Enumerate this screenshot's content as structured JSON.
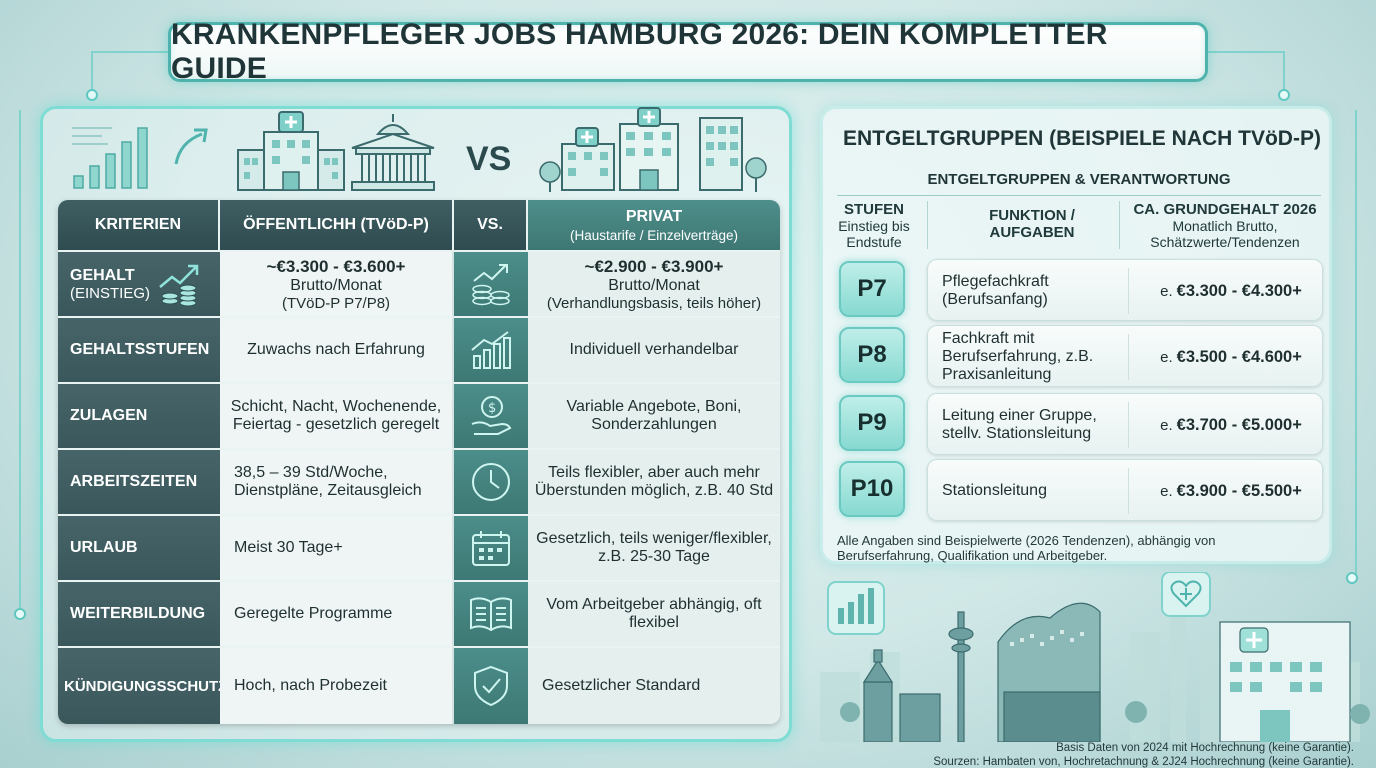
{
  "title": "KRANKENPFLEGER JOBS HAMBURG 2026: DEIN KOMPLETTER GUIDE",
  "vs_big": "VS",
  "comparison": {
    "headers": {
      "criteria": "KRITERIEN",
      "public": "ÖFFENTLICHH (TVöD-P)",
      "vs": "VS.",
      "private": "PRIVAT",
      "private_sub": "(Haustarife / Einzelverträge)"
    },
    "rows": [
      {
        "criterion": "GEHALT",
        "criterion_sub": "(EINSTIEG)",
        "public_lines": [
          "~€3.300 - €3.600+",
          "Brutto/Monat",
          "(TVöD-P P7/P8)"
        ],
        "icon": "coins-chart-icon",
        "private_lines": [
          "~€2.900 - €3.900+",
          "Brutto/Monat",
          "(Verhandlungsbasis, teils höher)"
        ]
      },
      {
        "criterion": "GEHALTSSTUFEN",
        "public": "Zuwachs nach Erfahrung",
        "icon": "growth-chart-icon",
        "private": "Individuell verhandelbar"
      },
      {
        "criterion": "ZULAGEN",
        "public": "Schicht, Nacht, Wochenende, Feiertag - gesetzlich geregelt",
        "icon": "money-hand-icon",
        "private": "Variable Angebote, Boni, Sonderzahlungen"
      },
      {
        "criterion": "ARBEITSZEITEN",
        "public": "38,5 – 39 Std/Woche, Dienstpläne, Zeitausgleich",
        "icon": "clock-icon",
        "private": "Teils flexibler, aber auch mehr Überstunden möglich, z.B. 40 Std"
      },
      {
        "criterion": "URLAUB",
        "public": "Meist 30 Tage+",
        "icon": "calendar-icon",
        "private": "Gesetzlich, teils weniger/flexibler, z.B. 25-30 Tage"
      },
      {
        "criterion": "WEITERBILDUNG",
        "public": "Geregelte Programme",
        "icon": "book-icon",
        "private": "Vom Arbeitgeber abhängig, oft flexibel"
      },
      {
        "criterion": "KÜNDIGUNGSSCHUTZ",
        "public": "Hoch, nach Probezeit",
        "icon": "shield-check-icon",
        "private": "Gesetzlicher Standard"
      }
    ]
  },
  "grades": {
    "title": "ENTGELTGRUPPEN (BEISPIELE NACH TVöD-P)",
    "subtitle": "ENTGELTGRUPPEN & VERANTWORTUNG",
    "col1_title": "STUFEN",
    "col1_sub": "Einstieg bis Endstufe",
    "col2_title": "FUNKTION / AUFGABEN",
    "col3_title": "CA. GRUNDGEHALT 2026",
    "col3_sub": "Monatlich Brutto, Schätzwerte/Tendenzen",
    "items": [
      {
        "grade": "P7",
        "function": "Pflegefachkraft (Berufsanfang)",
        "prefix": "e.",
        "salary": "€3.300 - €4.300+"
      },
      {
        "grade": "P8",
        "function": "Fachkraft mit Berufserfahrung, z.B. Praxisanleitung",
        "prefix": "e.",
        "salary": "€3.500 - €4.600+"
      },
      {
        "grade": "P9",
        "function": "Leitung einer Gruppe, stellv. Stationsleitung",
        "prefix": "e.",
        "salary": "€3.700 - €5.000+"
      },
      {
        "grade": "P10",
        "function": "Stationsleitung",
        "prefix": "e.",
        "salary": "€3.900 - €5.500+"
      }
    ],
    "note": "Alle Angaben sind Beispielwerte (2026 Tendenzen), abhängig von Berufserfahrung, Qualifikation und Arbeitgeber."
  },
  "footer": {
    "line1": "Basis Daten von 2024 mit Hochrechnung (keine Garantie).",
    "line2": "Sourzen: Hambaten von, Hochretachnung & 2J24 Hochrechnung (keine Garantie)."
  },
  "colors": {
    "accent": "#4fb3ad",
    "header_dark": "#3a585c",
    "private_teal": "#3e7773",
    "badge": "#86d9d1"
  }
}
